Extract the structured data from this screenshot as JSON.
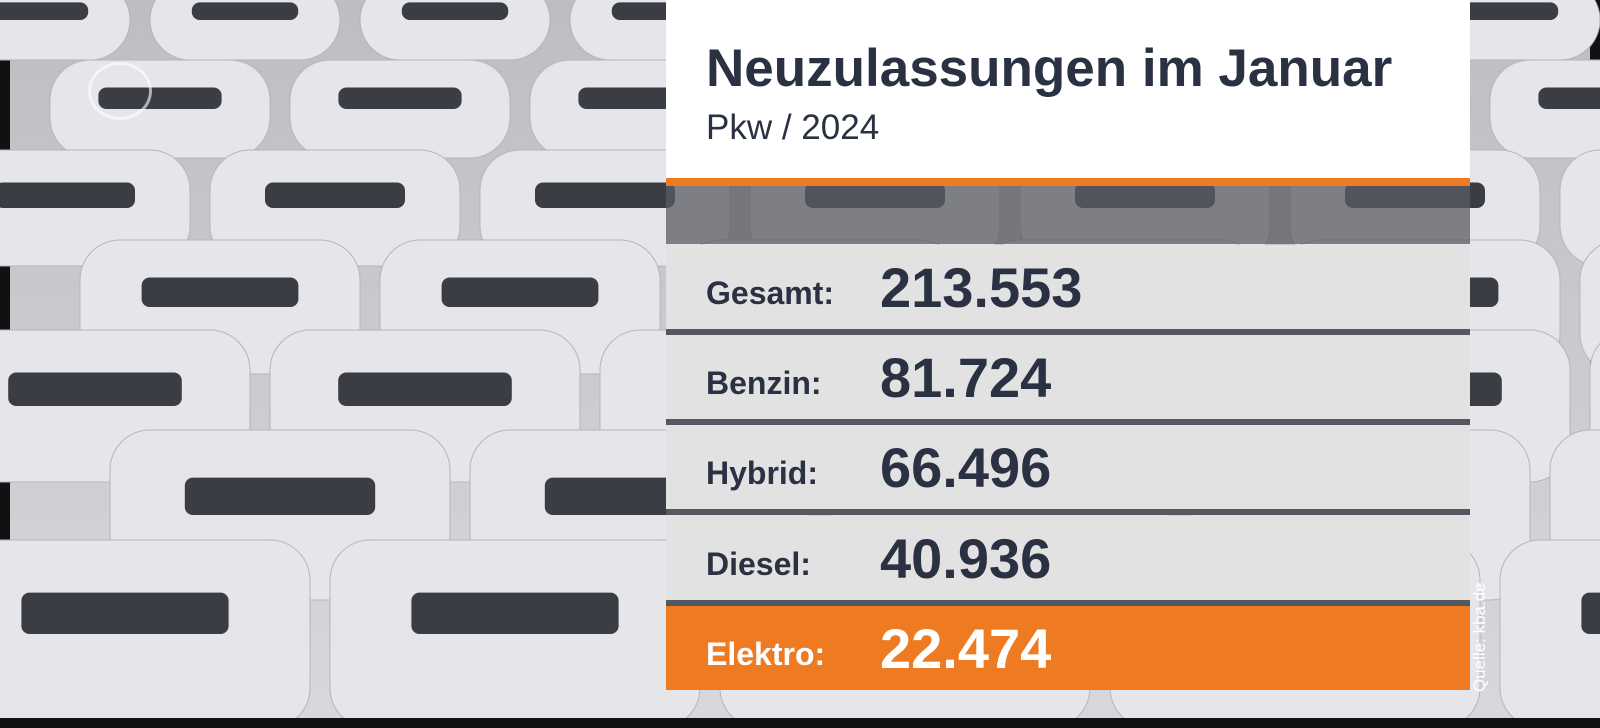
{
  "header": {
    "title": "Neuzulassungen im Januar",
    "subtitle": "Pkw / 2024"
  },
  "rows": [
    {
      "label": "Gesamt:",
      "value": "213.553"
    },
    {
      "label": "Benzin:",
      "value": "81.724"
    },
    {
      "label": "Hybrid:",
      "value": "66.496"
    },
    {
      "label": "Diesel:",
      "value": "40.936"
    },
    {
      "label": "Elektro:",
      "value": "22.474"
    }
  ],
  "source": "Quelle: kba.de"
}
